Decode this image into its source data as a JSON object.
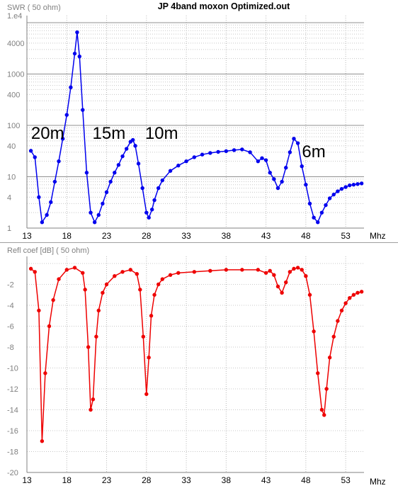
{
  "chart_data": [
    {
      "type": "line",
      "title": "JP 4band moxon Optimized.out",
      "ylabel": "SWR ( 50 ohm)",
      "xlabel": "Mhz",
      "y_scale": "log",
      "y_exponent_label": "1.e4",
      "ylim": [
        1,
        10000
      ],
      "xlim": [
        13,
        55.3
      ],
      "x_ticks": [
        13,
        18,
        23,
        28,
        33,
        38,
        43,
        48,
        53
      ],
      "y_ticks": [
        1,
        4,
        10,
        40,
        100,
        400,
        1000,
        4000
      ],
      "grid": true,
      "color": "#0000ee",
      "band_labels": [
        {
          "text": "20m",
          "x": 15.6,
          "y": 75
        },
        {
          "text": "15m",
          "x": 23.3,
          "y": 75
        },
        {
          "text": "10m",
          "x": 29.9,
          "y": 75
        },
        {
          "text": "6m",
          "x": 49.0,
          "y": 33
        }
      ],
      "series": [
        {
          "x": [
            13.5,
            14.0,
            14.5,
            14.9,
            15.5,
            16.0,
            16.5,
            17.0,
            17.5,
            18.0,
            18.5,
            19.0,
            19.3,
            19.6,
            20.0,
            20.5,
            21.0,
            21.5,
            22.0,
            22.5,
            23.0,
            23.5,
            24.0,
            24.5,
            25.0,
            25.5,
            26.0,
            26.3,
            26.6,
            27.0,
            27.5,
            28.0,
            28.3,
            28.7,
            29.0,
            29.5,
            30.0,
            31.0,
            32.0,
            33.0,
            34.0,
            35.0,
            36.0,
            37.0,
            38.0,
            39.0,
            40.0,
            41.0,
            42.0,
            42.5,
            43.0,
            43.5,
            44.0,
            44.5,
            45.0,
            45.5,
            46.0,
            46.5,
            47.0,
            47.5,
            48.0,
            48.5,
            49.0,
            49.5,
            50.0,
            50.5,
            51.0,
            51.5,
            52.0,
            52.5,
            53.0,
            53.5,
            54.0,
            54.5,
            55.0
          ],
          "y": [
            32,
            24,
            4,
            1.3,
            1.8,
            3.2,
            8,
            20,
            55,
            160,
            550,
            2500,
            6500,
            2200,
            200,
            12,
            2,
            1.3,
            1.8,
            3,
            5,
            8,
            12,
            17,
            25,
            35,
            48,
            52,
            40,
            18,
            6,
            2,
            1.6,
            2.3,
            3.5,
            6,
            8.5,
            13,
            16.5,
            20,
            24,
            27,
            29,
            30.5,
            31.5,
            33,
            34,
            30,
            20,
            23,
            21,
            12,
            9,
            6,
            8,
            15,
            30,
            55,
            45,
            16,
            7,
            3,
            1.6,
            1.3,
            2,
            2.8,
            3.8,
            4.5,
            5.2,
            5.8,
            6.3,
            6.8,
            7,
            7.2,
            7.4
          ]
        }
      ]
    },
    {
      "type": "line",
      "title": "",
      "ylabel": "Refl coef [dB] ( 50 ohm)",
      "xlabel": "Mhz",
      "ylim": [
        -20,
        0
      ],
      "xlim": [
        13,
        55.3
      ],
      "x_ticks": [
        13,
        18,
        23,
        28,
        33,
        38,
        43,
        48,
        53
      ],
      "y_ticks": [
        -2,
        -4,
        -6,
        -8,
        -10,
        -12,
        -14,
        -16,
        -18,
        -20
      ],
      "grid": true,
      "color": "#ee0000",
      "series": [
        {
          "x": [
            13.5,
            14.0,
            14.5,
            14.9,
            15.3,
            15.8,
            16.3,
            17.0,
            18.0,
            19.0,
            20.0,
            20.3,
            20.7,
            21.0,
            21.3,
            21.7,
            22.0,
            22.5,
            23.0,
            24.0,
            25.0,
            26.0,
            26.8,
            27.2,
            27.6,
            28.0,
            28.3,
            28.6,
            29.0,
            29.5,
            30.0,
            31.0,
            32.0,
            34.0,
            36.0,
            38.0,
            40.0,
            42.0,
            43.0,
            43.5,
            44.0,
            44.5,
            45.0,
            45.5,
            46.0,
            46.5,
            47.0,
            47.5,
            48.0,
            48.5,
            49.0,
            49.5,
            50.0,
            50.3,
            50.6,
            51.0,
            51.5,
            52.0,
            52.5,
            53.0,
            53.5,
            54.0,
            54.5,
            55.0
          ],
          "y": [
            -0.5,
            -0.8,
            -4.5,
            -17,
            -10.5,
            -6,
            -3.5,
            -1.5,
            -0.6,
            -0.4,
            -0.9,
            -2.5,
            -8,
            -14,
            -13,
            -7,
            -4.5,
            -2.8,
            -2,
            -1.2,
            -0.8,
            -0.6,
            -1,
            -2.5,
            -7,
            -12.5,
            -9,
            -5,
            -3,
            -2,
            -1.5,
            -1.1,
            -0.9,
            -0.8,
            -0.7,
            -0.6,
            -0.6,
            -0.6,
            -0.9,
            -0.7,
            -1.1,
            -2.2,
            -2.8,
            -1.8,
            -0.8,
            -0.5,
            -0.4,
            -0.6,
            -1.2,
            -3,
            -6.5,
            -10.5,
            -14,
            -14.5,
            -12,
            -9,
            -7,
            -5.5,
            -4.5,
            -3.8,
            -3.3,
            -3,
            -2.8,
            -2.7
          ]
        }
      ]
    }
  ]
}
